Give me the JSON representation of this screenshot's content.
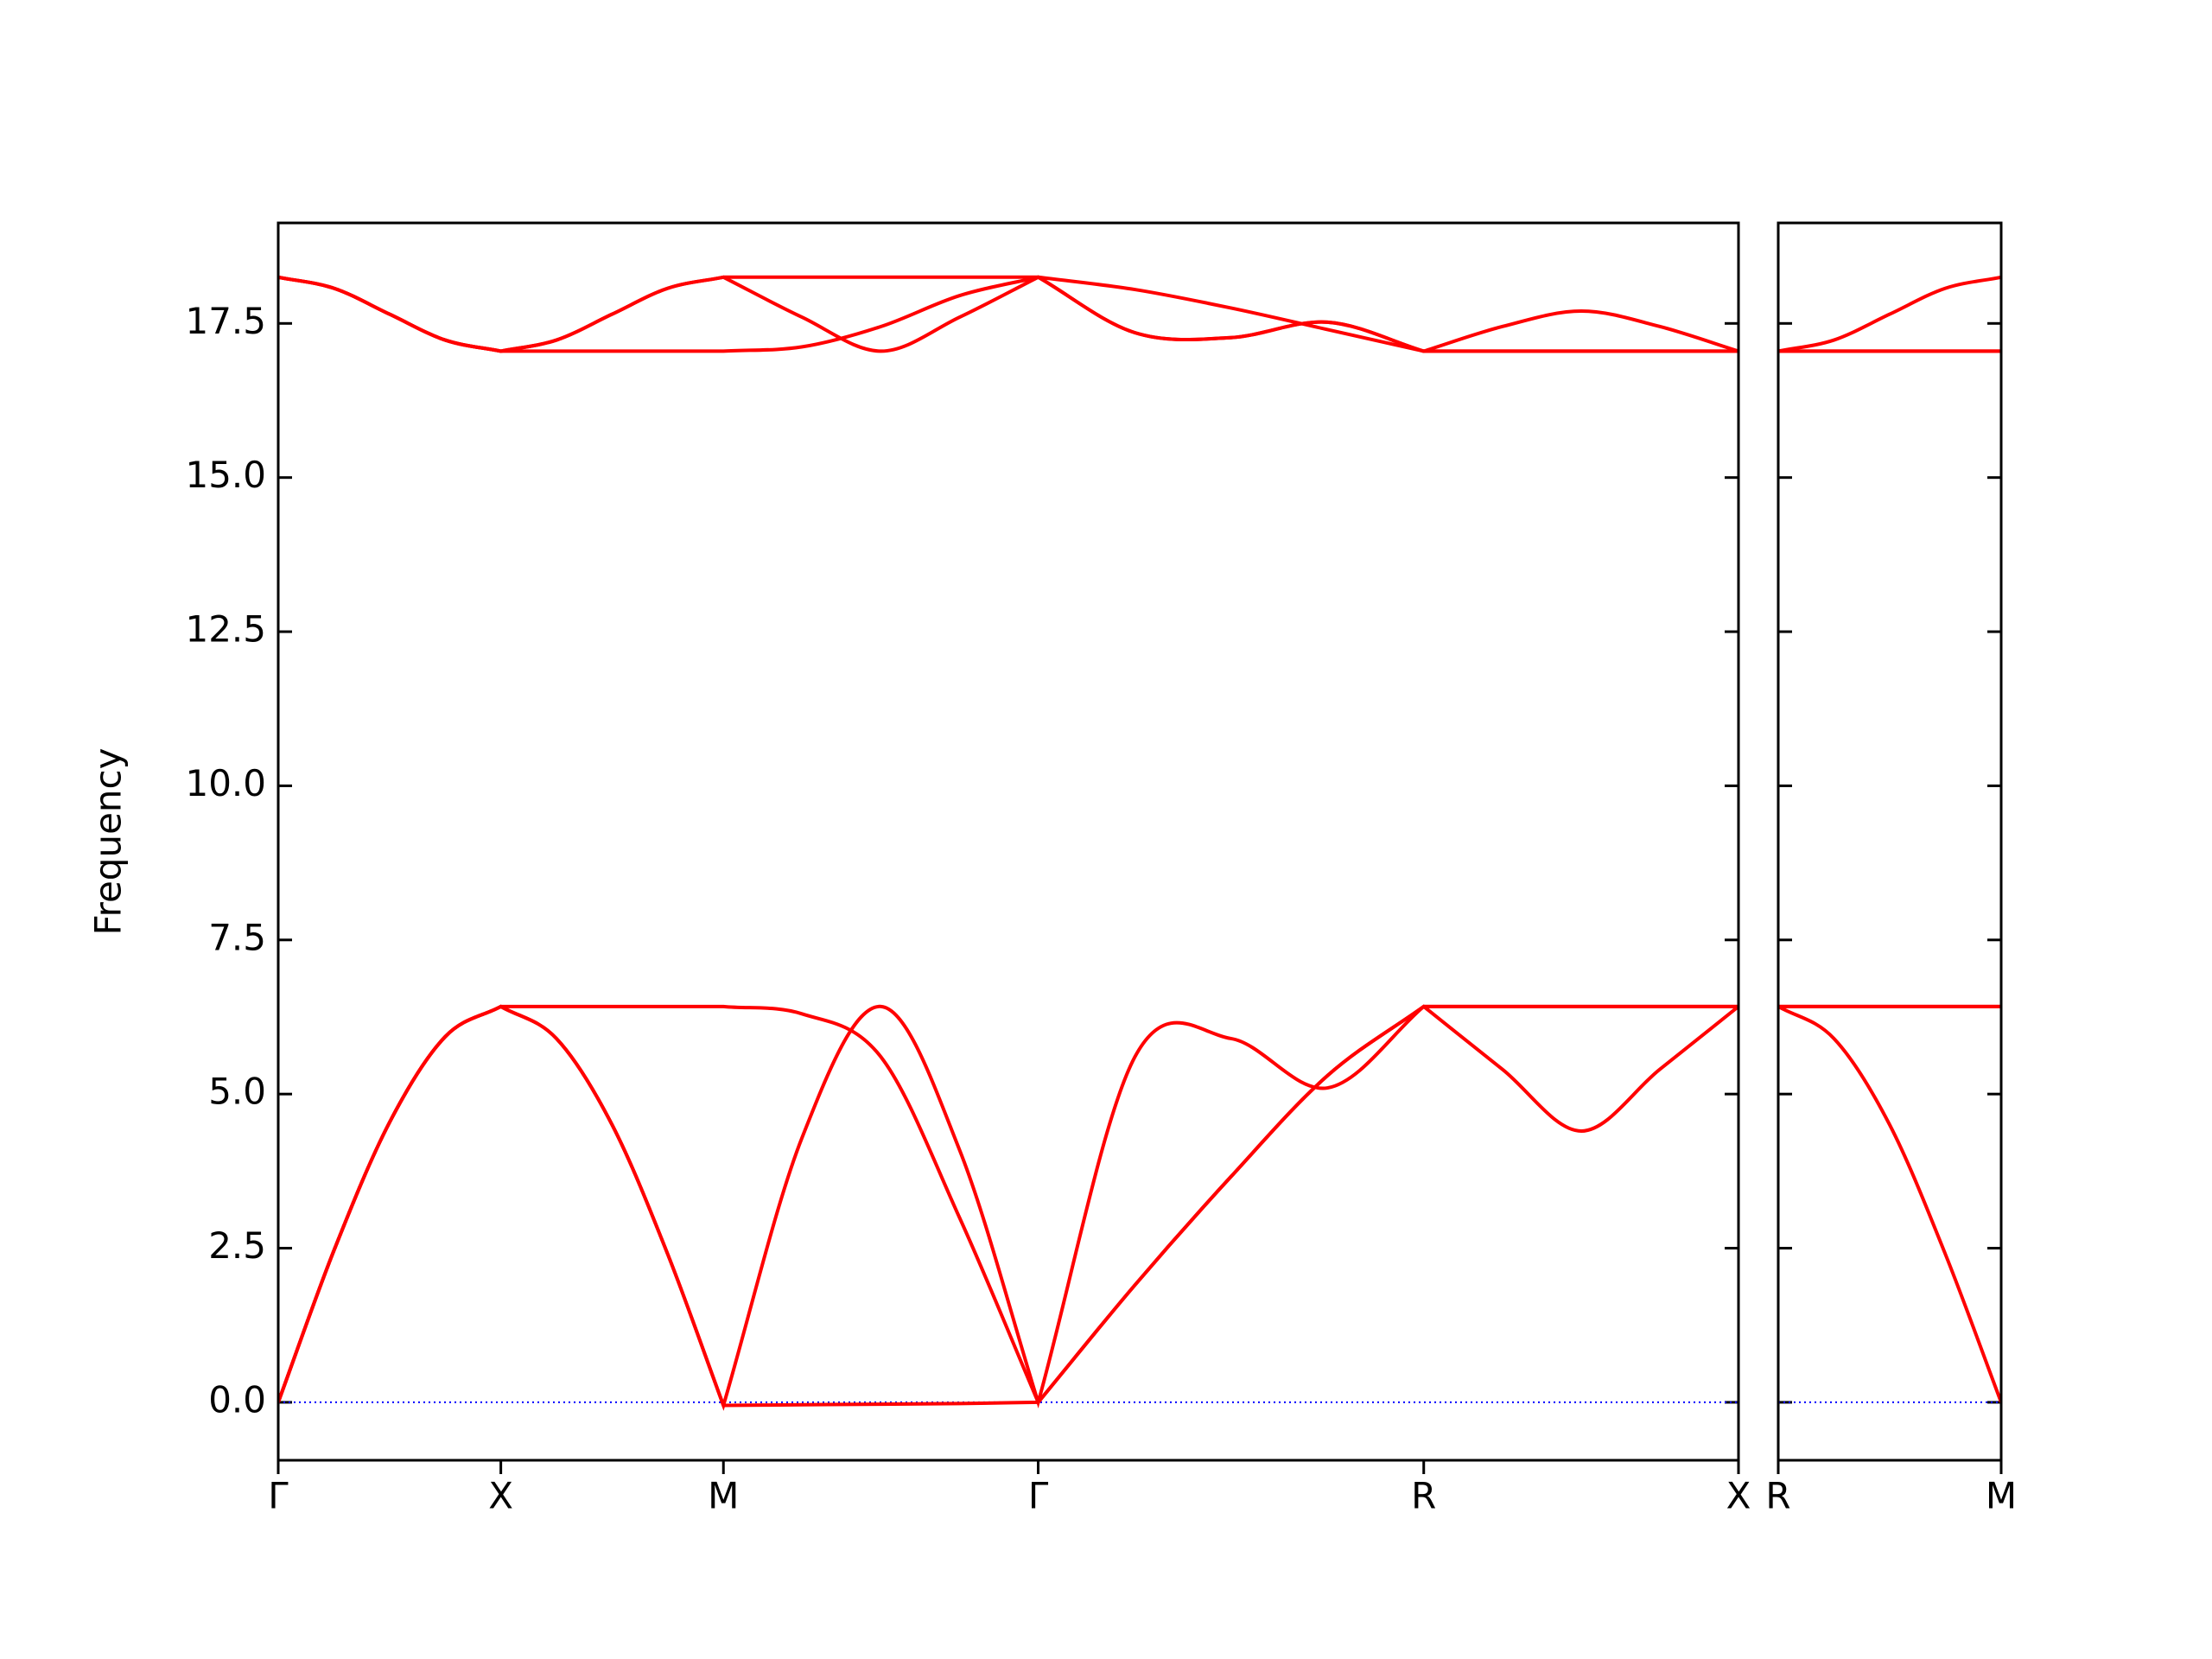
{
  "chart_data": [
    {
      "type": "line",
      "ylabel": "Frequency",
      "x": [
        0,
        0.125,
        0.25,
        0.375,
        0.5,
        0.625,
        0.75,
        0.875,
        1.0,
        1.177,
        1.354,
        1.53,
        1.707,
        1.924,
        2.14,
        2.357,
        2.573,
        2.75,
        2.927,
        3.103,
        3.28
      ],
      "xlim": [
        0,
        3.28
      ],
      "xticks": [
        {
          "value": 0,
          "label": "Γ"
        },
        {
          "value": 0.5,
          "label": "X"
        },
        {
          "value": 1.0,
          "label": "M"
        },
        {
          "value": 1.707,
          "label": "Γ"
        },
        {
          "value": 2.573,
          "label": "R"
        },
        {
          "value": 3.28,
          "label": "X"
        }
      ],
      "ylim": [
        -0.94,
        19.13
      ],
      "yticks": [
        {
          "value": 0,
          "label": "0.0"
        },
        2.5,
        {
          "value": 5,
          "label": "5.0"
        },
        7.5,
        {
          "value": 10,
          "label": "10.0"
        },
        12.5,
        {
          "value": 15,
          "label": "15.0"
        },
        17.5
      ],
      "ytick_labels": true,
      "hline": 0,
      "hline_color": "#0000ff",
      "series": [
        {
          "color": "#ff0000",
          "values": [
            0,
            2.46,
            4.54,
            5.93,
            6.42,
            5.9,
            4.5,
            2.4,
            -0.05,
            -0.04,
            -0.03,
            -0.02,
            0,
            1.9,
            3.66,
            5.3,
            6.42,
            5.4,
            4.4,
            5.4,
            6.42
          ]
        },
        {
          "color": "#ff0000",
          "values": [
            0,
            2.46,
            4.54,
            5.93,
            6.42,
            5.9,
            4.5,
            2.4,
            -0.05,
            4.3,
            6.42,
            4.1,
            0,
            5.6,
            5.9,
            5.1,
            6.42,
            6.42,
            6.42,
            6.42,
            6.42
          ]
        },
        {
          "color": "#ff0000",
          "values": [
            0,
            2.46,
            4.54,
            5.93,
            6.42,
            6.42,
            6.42,
            6.42,
            6.42,
            6.3,
            5.6,
            3.0,
            0,
            1.9,
            3.66,
            5.3,
            6.42,
            6.42,
            6.42,
            6.42,
            6.42
          ]
        },
        {
          "color": "#ff0000",
          "values": [
            18.25,
            18.07,
            17.65,
            17.23,
            17.05,
            17.05,
            17.05,
            17.05,
            17.05,
            17.12,
            17.45,
            17.95,
            18.25,
            17.35,
            17.27,
            17.52,
            17.05,
            17.05,
            17.05,
            17.05,
            17.05
          ]
        },
        {
          "color": "#ff0000",
          "values": [
            18.25,
            18.07,
            17.65,
            17.23,
            17.05,
            17.23,
            17.65,
            18.07,
            18.25,
            17.6,
            17.05,
            17.6,
            18.25,
            17.35,
            17.27,
            17.52,
            17.05,
            17.05,
            17.05,
            17.05,
            17.05
          ]
        },
        {
          "color": "#ff0000",
          "values": [
            18.25,
            18.07,
            17.65,
            17.23,
            17.05,
            17.23,
            17.65,
            18.07,
            18.25,
            18.25,
            18.25,
            18.25,
            18.25,
            18.05,
            17.75,
            17.4,
            17.05,
            17.45,
            17.7,
            17.45,
            17.05
          ]
        }
      ]
    },
    {
      "type": "line",
      "x": [
        3.28,
        3.405,
        3.53,
        3.655,
        3.78
      ],
      "xlim": [
        3.28,
        3.78
      ],
      "xticks": [
        {
          "value": 3.28,
          "label": "R"
        },
        {
          "value": 3.78,
          "label": "M"
        }
      ],
      "ylim": [
        -0.94,
        19.13
      ],
      "yticks": [
        0,
        2.5,
        5,
        7.5,
        10,
        12.5,
        15,
        17.5
      ],
      "ytick_labels": false,
      "hline": 0,
      "hline_color": "#0000ff",
      "series": [
        {
          "color": "#ff0000",
          "values": [
            6.42,
            5.9,
            4.5,
            2.4,
            0
          ]
        },
        {
          "color": "#ff0000",
          "values": [
            6.42,
            6.42,
            6.42,
            6.42,
            6.42
          ]
        },
        {
          "color": "#ff0000",
          "values": [
            6.42,
            6.42,
            6.42,
            6.42,
            6.42
          ]
        },
        {
          "color": "#ff0000",
          "values": [
            17.05,
            17.05,
            17.05,
            17.05,
            17.05
          ]
        },
        {
          "color": "#ff0000",
          "values": [
            17.05,
            17.05,
            17.05,
            17.05,
            17.05
          ]
        },
        {
          "color": "#ff0000",
          "values": [
            17.05,
            17.23,
            17.65,
            18.07,
            18.25
          ]
        }
      ]
    }
  ]
}
